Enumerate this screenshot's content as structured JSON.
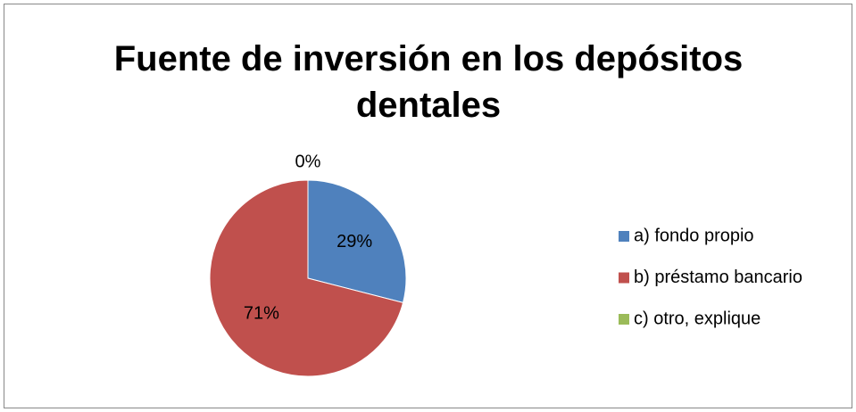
{
  "chart_data": {
    "type": "pie",
    "title": "Fuente de inversión en los depósitos dentales",
    "categories": [
      "a) fondo propio",
      "b) préstamo bancario",
      "c) otro, explique"
    ],
    "values": [
      29,
      71,
      0
    ],
    "value_labels": [
      "29%",
      "71%",
      "0%"
    ],
    "colors": [
      "#4f81bd",
      "#c0504d",
      "#9bbb59"
    ],
    "legend": "right"
  }
}
